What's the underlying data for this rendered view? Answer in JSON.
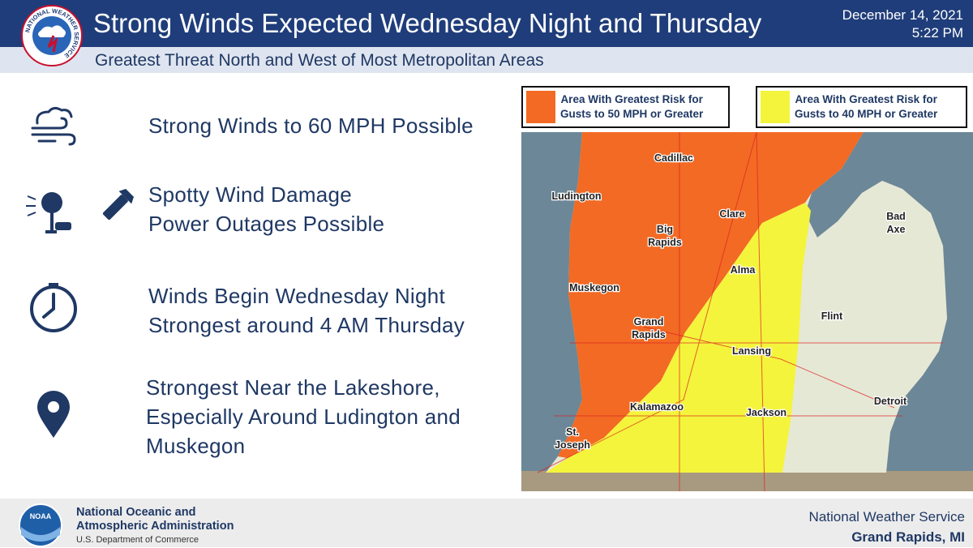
{
  "header": {
    "title": "Strong Winds Expected Wednesday Night and Thursday",
    "subtitle": "Greatest Threat North and West of Most Metropolitan Areas",
    "date": "December 14, 2021",
    "time": "5:22 PM",
    "logo_text": "NATIONAL WEATHER SERVICE"
  },
  "bullets": [
    {
      "lines": [
        "Strong Winds to 60 MPH Possible"
      ]
    },
    {
      "lines": [
        "Spotty Wind Damage",
        "Power Outages Possible"
      ]
    },
    {
      "lines": [
        "Winds Begin Wednesday Night",
        "Strongest around 4 AM Thursday"
      ]
    },
    {
      "lines": [
        "Strongest Near the Lakeshore,",
        "Especially Around Ludington and",
        "Muskegon"
      ]
    }
  ],
  "legend": [
    {
      "lines": [
        "Area With Greatest Risk for",
        "Gusts to 50 MPH or Greater"
      ],
      "color": "#f26a24"
    },
    {
      "lines": [
        "Area With Greatest Risk for",
        "Gusts to 40 MPH or Greater"
      ],
      "color": "#f4f43c"
    }
  ],
  "map": {
    "cities": [
      {
        "lines": [
          "Cadillac"
        ]
      },
      {
        "lines": [
          "Ludington"
        ]
      },
      {
        "lines": [
          "Clare"
        ]
      },
      {
        "lines": [
          "Bad",
          "Axe"
        ]
      },
      {
        "lines": [
          "Big",
          "Rapids"
        ]
      },
      {
        "lines": [
          "Alma"
        ]
      },
      {
        "lines": [
          "Muskegon"
        ]
      },
      {
        "lines": [
          "Flint"
        ]
      },
      {
        "lines": [
          "Grand",
          "Rapids"
        ]
      },
      {
        "lines": [
          "Lansing"
        ]
      },
      {
        "lines": [
          "Detroit"
        ]
      },
      {
        "lines": [
          "Kalamazoo"
        ]
      },
      {
        "lines": [
          "Jackson"
        ]
      },
      {
        "lines": [
          "St.",
          "Joseph"
        ]
      }
    ]
  },
  "footer": {
    "agency_line1": "National Oceanic and",
    "agency_line2": "Atmospheric Administration",
    "department": "U.S. Department of Commerce",
    "logo_text": "NOAA",
    "office_line1": "National Weather Service",
    "office_line2": "Grand Rapids, MI"
  }
}
